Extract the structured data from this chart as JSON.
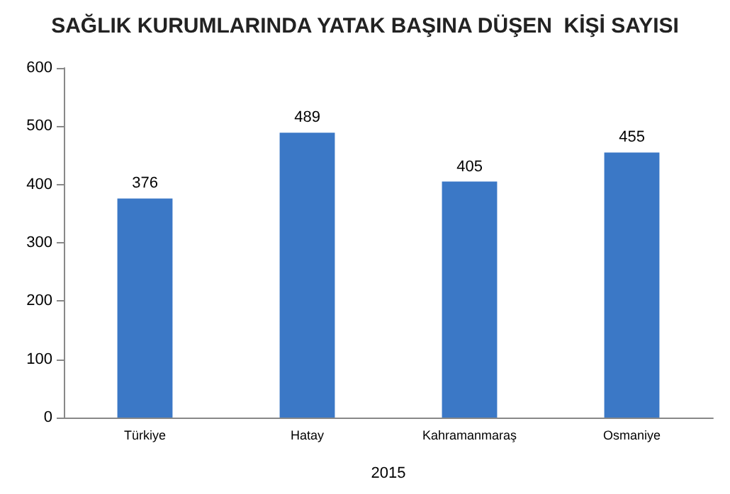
{
  "chart_data": {
    "type": "bar",
    "title": "SAĞLIK KURUMLARINDA YATAK BAŞINA DÜŞEN  KİŞİ SAYISI",
    "xlabel": "2015",
    "categories": [
      "Türkiye",
      "Hatay",
      "Kahramanmaraş",
      "Osmaniye"
    ],
    "values": [
      376,
      489,
      405,
      455
    ],
    "color": "#3b78c6",
    "ylim": [
      0,
      600
    ],
    "yticks": [
      0,
      100,
      200,
      300,
      400,
      500,
      600
    ],
    "grid": false,
    "data_labels": true
  }
}
